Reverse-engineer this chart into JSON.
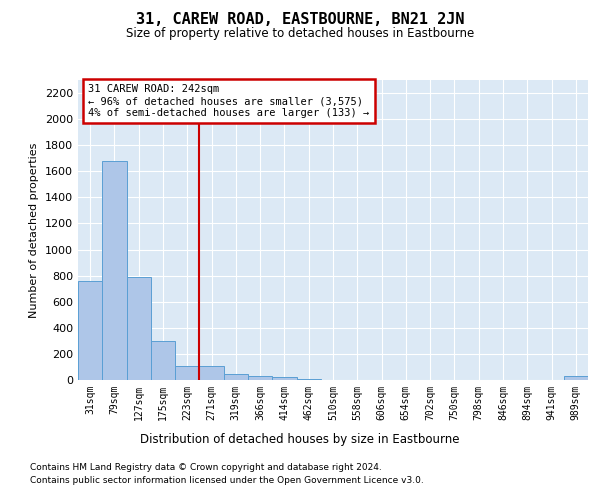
{
  "title": "31, CAREW ROAD, EASTBOURNE, BN21 2JN",
  "subtitle": "Size of property relative to detached houses in Eastbourne",
  "xlabel": "Distribution of detached houses by size in Eastbourne",
  "ylabel": "Number of detached properties",
  "bar_labels": [
    "31sqm",
    "79sqm",
    "127sqm",
    "175sqm",
    "223sqm",
    "271sqm",
    "319sqm",
    "366sqm",
    "414sqm",
    "462sqm",
    "510sqm",
    "558sqm",
    "606sqm",
    "654sqm",
    "702sqm",
    "750sqm",
    "798sqm",
    "846sqm",
    "894sqm",
    "941sqm",
    "989sqm"
  ],
  "bar_values": [
    760,
    1680,
    790,
    300,
    110,
    110,
    45,
    30,
    20,
    5,
    0,
    0,
    0,
    0,
    0,
    0,
    0,
    0,
    0,
    0,
    30
  ],
  "bar_color": "#aec6e8",
  "bar_edge_color": "#5a9fd4",
  "grid_color": "#ffffff",
  "bg_color": "#dce9f5",
  "vline_x_index": 5,
  "vline_color": "#cc0000",
  "annotation_text": "31 CAREW ROAD: 242sqm\n← 96% of detached houses are smaller (3,575)\n4% of semi-detached houses are larger (133) →",
  "annotation_box_color": "#cc0000",
  "ylim": [
    0,
    2300
  ],
  "yticks": [
    0,
    200,
    400,
    600,
    800,
    1000,
    1200,
    1400,
    1600,
    1800,
    2000,
    2200
  ],
  "footer_line1": "Contains HM Land Registry data © Crown copyright and database right 2024.",
  "footer_line2": "Contains public sector information licensed under the Open Government Licence v3.0."
}
